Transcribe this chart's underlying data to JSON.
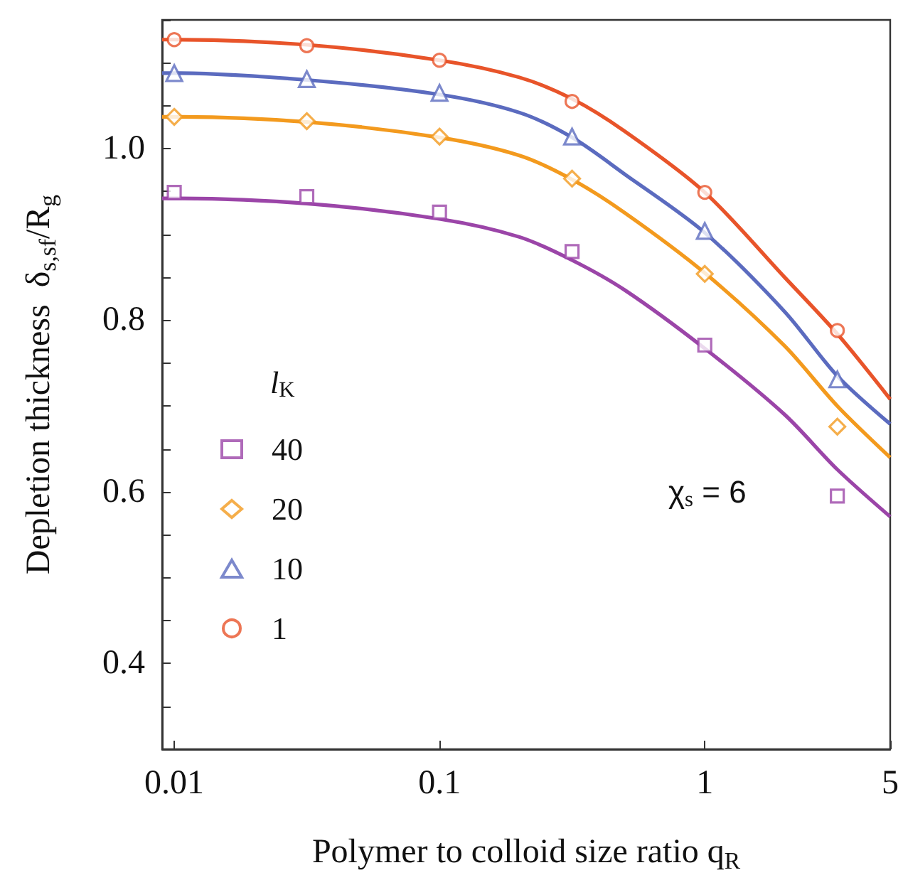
{
  "chart_data": {
    "type": "scatter",
    "xlabel": "Polymer to colloid size ratio q$_{R}$",
    "ylabel": "Depletion thickness  δ$_{s,sf}$/R$_{g}$",
    "legend_title": "l$_{K}$",
    "legend": "left",
    "log": "x",
    "grid": false,
    "xlim": [
      0.009,
      5
    ],
    "xticks": [
      0.01,
      0.1,
      1,
      5
    ],
    "ylim": [
      0.3,
      1.15
    ],
    "yticks": [
      {
        "value": 0.3,
        "label": null
      },
      {
        "value": 0.35,
        "label": null
      },
      0.4,
      {
        "value": 0.45,
        "label": null
      },
      {
        "value": 0.5,
        "label": null
      },
      {
        "value": 0.55,
        "label": null
      },
      0.6,
      {
        "value": 0.65,
        "label": null
      },
      {
        "value": 0.7,
        "label": null
      },
      {
        "value": 0.75,
        "label": null
      },
      0.8,
      {
        "value": 0.85,
        "label": null
      },
      {
        "value": 0.9,
        "label": null
      },
      {
        "value": 0.95,
        "label": null
      },
      {
        "value": 1.0,
        "label": "1.0"
      },
      {
        "value": 1.05,
        "label": null
      },
      {
        "value": 1.1,
        "label": null
      },
      {
        "value": 1.15,
        "label": null
      }
    ],
    "annotations": [
      "χ$_{s}$ = 6"
    ],
    "series": [
      {
        "type": "line",
        "marker": "none",
        "color": "#9b45a8",
        "x": [
          0.009,
          0.01,
          0.0316,
          0.1,
          0.2,
          0.316,
          0.5,
          1,
          2,
          3.16,
          5
        ],
        "values": [
          0.942,
          0.942,
          0.936,
          0.918,
          0.897,
          0.87,
          0.835,
          0.767,
          0.69,
          0.626,
          0.571
        ]
      },
      {
        "type": "line",
        "marker": "none",
        "color": "#f39a1e",
        "x": [
          0.009,
          0.01,
          0.0316,
          0.1,
          0.2,
          0.316,
          0.5,
          1,
          2,
          3.16,
          5
        ],
        "values": [
          1.037,
          1.037,
          1.031,
          1.013,
          0.992,
          0.964,
          0.925,
          0.855,
          0.77,
          0.7,
          0.64
        ]
      },
      {
        "type": "line",
        "marker": "none",
        "color": "#5b6bbf",
        "x": [
          0.009,
          0.01,
          0.0316,
          0.1,
          0.2,
          0.316,
          0.5,
          1,
          2,
          3.16,
          5
        ],
        "values": [
          1.088,
          1.088,
          1.08,
          1.063,
          1.042,
          1.013,
          0.97,
          0.902,
          0.81,
          0.735,
          0.679
        ]
      },
      {
        "type": "line",
        "marker": "none",
        "color": "#e8542a",
        "x": [
          0.009,
          0.01,
          0.0316,
          0.1,
          0.2,
          0.316,
          0.5,
          1,
          2,
          3.16,
          5
        ],
        "values": [
          1.127,
          1.127,
          1.121,
          1.103,
          1.083,
          1.058,
          1.02,
          0.949,
          0.85,
          0.784,
          0.708
        ]
      },
      {
        "name": "40",
        "marker": "square",
        "color": "#9b45a8",
        "x": [
          0.01,
          0.0316,
          0.1,
          0.316,
          1,
          3.16
        ],
        "values": [
          0.949,
          0.944,
          0.926,
          0.88,
          0.771,
          0.595
        ]
      },
      {
        "name": "20",
        "marker": "diamond",
        "color": "#f39a1e",
        "x": [
          0.01,
          0.0316,
          0.1,
          0.316,
          1,
          3.16
        ],
        "values": [
          1.037,
          1.032,
          1.014,
          0.965,
          0.854,
          0.676
        ]
      },
      {
        "name": "10",
        "marker": "triangle",
        "color": "#5b6bbf",
        "x": [
          0.01,
          0.0316,
          0.1,
          0.316,
          1,
          3.16
        ],
        "values": [
          1.088,
          1.081,
          1.065,
          1.014,
          0.904,
          0.731
        ]
      },
      {
        "name": "1",
        "marker": "circle",
        "color": "#e8542a",
        "x": [
          0.01,
          0.0316,
          0.1,
          0.316,
          1,
          3.16
        ],
        "values": [
          1.127,
          1.12,
          1.103,
          1.055,
          0.949,
          0.788
        ]
      }
    ]
  }
}
